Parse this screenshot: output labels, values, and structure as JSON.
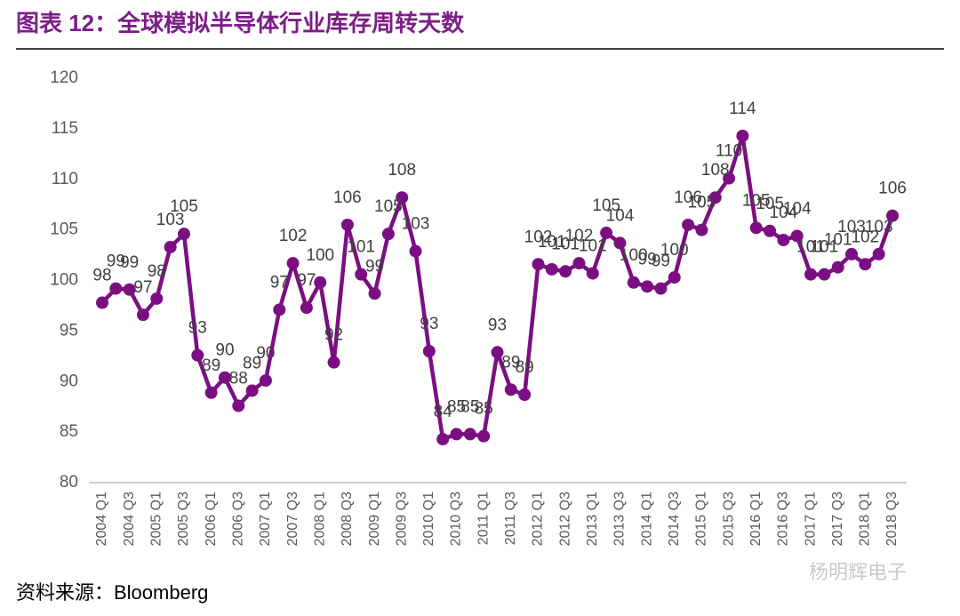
{
  "chart_data": {
    "type": "line",
    "title": "图表 12：全球模拟半导体行业库存周转天数",
    "source": "资料来源：Bloomberg",
    "watermark": "杨明辉电子",
    "categories": [
      "2004 Q1",
      null,
      "2004 Q3",
      null,
      "2005 Q1",
      null,
      "2005 Q3",
      null,
      "2006 Q1",
      null,
      "2006 Q3",
      null,
      "2007 Q1",
      null,
      "2007 Q3",
      null,
      "2008 Q1",
      null,
      "2008 Q3",
      null,
      "2009 Q1",
      null,
      "2009 Q3",
      null,
      "2010 Q1",
      null,
      "2010 Q3",
      null,
      "2011 Q1",
      null,
      "2011 Q3",
      null,
      "2012 Q1",
      null,
      "2012 Q3",
      null,
      "2013 Q1",
      null,
      "2013 Q3",
      null,
      "2014 Q1",
      null,
      "2014 Q3",
      null,
      "2015 Q1",
      null,
      "2015 Q3",
      null,
      "2016 Q1",
      null,
      "2016 Q3",
      null,
      "2017 Q1",
      null,
      "2017 Q3",
      null,
      "2018 Q1",
      null,
      "2018 Q3"
    ],
    "values": [
      97.8,
      99.2,
      99.1,
      96.6,
      98.2,
      103.3,
      104.6,
      92.6,
      88.9,
      90.4,
      87.6,
      89.1,
      90.1,
      97.1,
      101.7,
      97.3,
      99.8,
      91.9,
      105.5,
      100.6,
      98.7,
      104.6,
      108.2,
      102.9,
      93.0,
      84.3,
      84.8,
      84.8,
      84.6,
      92.9,
      89.2,
      88.7,
      101.6,
      101.1,
      100.9,
      101.7,
      100.7,
      104.7,
      103.7,
      99.8,
      99.4,
      99.2,
      100.3,
      105.5,
      105.0,
      108.2,
      110.1,
      114.3,
      105.2,
      104.9,
      104.0,
      104.4,
      100.6,
      100.6,
      101.3,
      102.6,
      101.6,
      102.6,
      106.4
    ],
    "value_labels": [
      "98",
      "99",
      "99",
      "97",
      "98",
      "103",
      "105",
      "93",
      "89",
      "90",
      "88",
      "89",
      "90",
      "97",
      "102",
      "97",
      "100",
      "92",
      "106",
      "101",
      "99",
      "105",
      "108",
      "103",
      "93",
      "84",
      "85",
      "85",
      "85",
      "93",
      "89",
      "89",
      "102",
      "101",
      "101",
      "102",
      "101",
      "105",
      "104",
      "100",
      "99",
      "99",
      "100",
      "106",
      "105",
      "108",
      "110",
      "114",
      "105",
      "105",
      "104",
      "104",
      "101",
      "101",
      "101",
      "103",
      "102",
      "103",
      "106"
    ],
    "color": "#7b0f82",
    "ylim": [
      80,
      120
    ],
    "yticks": [
      80,
      85,
      90,
      95,
      100,
      105,
      110,
      115,
      120
    ]
  }
}
